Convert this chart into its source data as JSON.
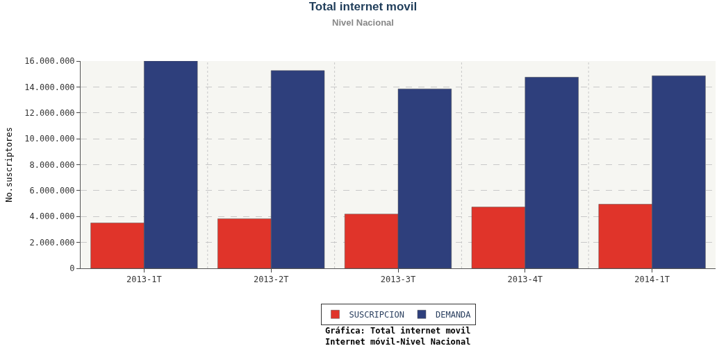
{
  "chart_data": {
    "type": "bar",
    "title": "Total internet movil",
    "subtitle": "Nivel Nacional",
    "ylabel": "No.suscriptores",
    "categories": [
      "2013-1T",
      "2013-2T",
      "2013-3T",
      "2013-4T",
      "2014-1T"
    ],
    "series": [
      {
        "name": "SUSCRIPCION",
        "color": "#e0342a",
        "values": [
          3500000,
          3830000,
          4190000,
          4730000,
          4950000
        ]
      },
      {
        "name": "DEMANDA",
        "color": "#2e3f7c",
        "values": [
          16000000,
          15260000,
          13850000,
          14750000,
          14860000
        ]
      }
    ],
    "ylim": [
      0,
      16000000
    ],
    "yticks": [
      {
        "value": 0,
        "label": "0"
      },
      {
        "value": 2000000,
        "label": "2.000.000"
      },
      {
        "value": 4000000,
        "label": "4.000.000"
      },
      {
        "value": 6000000,
        "label": "6.000.000"
      },
      {
        "value": 8000000,
        "label": "8.000.000"
      },
      {
        "value": 10000000,
        "label": "10.000.000"
      },
      {
        "value": 12000000,
        "label": "12.000.000"
      },
      {
        "value": 14000000,
        "label": "14.000.000"
      },
      {
        "value": 16000000,
        "label": "16.000.000"
      }
    ],
    "grid": true,
    "legend": "bottom",
    "annotations": [
      "Gráfica: Total internet movil",
      "Internet móvil-Nivel Nacional"
    ]
  }
}
